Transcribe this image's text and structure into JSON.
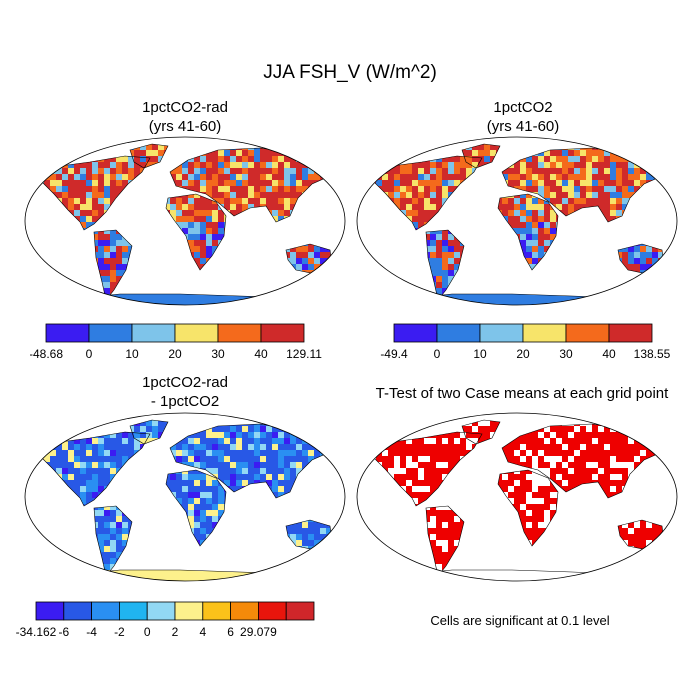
{
  "title": "JJA FSH_V (W/m^2)",
  "panels": [
    {
      "line1": "1pctCO2-rad",
      "line2": "(yrs 41-60)"
    },
    {
      "line1": "1pctCO2",
      "line2": "(yrs 41-60)"
    },
    {
      "line1": "1pctCO2-rad",
      "line2": "- 1pctCO2"
    },
    {
      "line1": "T-Test of two Case means at each grid point",
      "line2": ""
    }
  ],
  "colorbars": [
    {
      "labels": [
        "-48.68",
        "0",
        "10",
        "20",
        "30",
        "40",
        "129.11"
      ],
      "colors": [
        "#3b1cf2",
        "#2f7de1",
        "#7ec4ea",
        "#f7e46a",
        "#f46a1c",
        "#cf2a2a"
      ]
    },
    {
      "labels": [
        "-49.4",
        "0",
        "10",
        "20",
        "30",
        "40",
        "138.55"
      ],
      "colors": [
        "#3b1cf2",
        "#2f7de1",
        "#7ec4ea",
        "#f7e46a",
        "#f46a1c",
        "#cf2a2a"
      ]
    },
    {
      "labels": [
        "-34.162",
        "-6",
        "-4",
        "-2",
        "0",
        "2",
        "4",
        "6",
        "29.079"
      ],
      "colors": [
        "#3b1cf2",
        "#2858e6",
        "#2a8ff2",
        "#20b4f0",
        "#92d8f4",
        "#fdf18c",
        "#fbc21a",
        "#f58a0a",
        "#e8150c",
        "#d0262a"
      ]
    }
  ],
  "footnote": "Cells are significant at 0.1 level",
  "map_colors": {
    "ocean": "#ffffff",
    "warm": [
      "#cf2a2a",
      "#f46a1c",
      "#f7e46a",
      "#7ec4ea",
      "#2f7de1",
      "#3b1cf2"
    ],
    "diff": [
      "#2858e6",
      "#2a8ff2",
      "#92d8f4",
      "#fdf18c",
      "#3b1cf2"
    ],
    "sig": "#ee0000"
  }
}
